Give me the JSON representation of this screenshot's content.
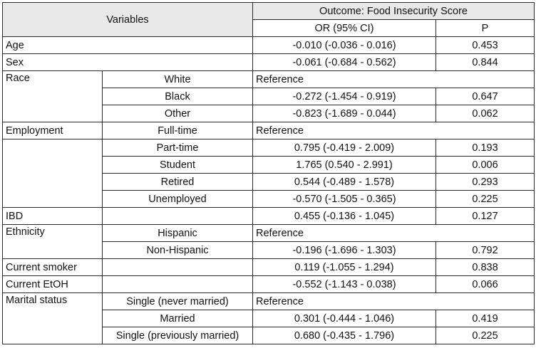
{
  "header": {
    "variables": "Variables",
    "outcome": "Outcome: Food Insecurity Score",
    "or_col": "OR (95% CI)",
    "p_col": "P"
  },
  "rows": {
    "age": {
      "label": "Age",
      "or": "-0.010 (-0.036 - 0.016)",
      "p": "0.453"
    },
    "sex": {
      "label": "Sex",
      "or": "-0.061 (-0.684 - 0.562)",
      "p": "0.844"
    },
    "race": {
      "label": "Race",
      "white": {
        "label": "White",
        "or": "Reference"
      },
      "black": {
        "label": "Black",
        "or": "-0.272 (-1.454 - 0.919)",
        "p": "0.647"
      },
      "other": {
        "label": "Other",
        "or": "-0.823 (-1.689 - 0.044)",
        "p": "0.062"
      }
    },
    "employment": {
      "label": "Employment",
      "fulltime": {
        "label": "Full-time",
        "or": "Reference"
      },
      "parttime": {
        "label": "Part-time",
        "or": "0.795 (-0.419 - 2.009)",
        "p": "0.193"
      },
      "student": {
        "label": "Student",
        "or": "1.765 (0.540 - 2.991)",
        "p": "0.006"
      },
      "retired": {
        "label": "Retired",
        "or": "0.544 (-0.489 - 1.578)",
        "p": "0.293"
      },
      "unemployed": {
        "label": "Unemployed",
        "or": "-0.570 (-1.505 - 0.365)",
        "p": "0.225"
      }
    },
    "ibd": {
      "label": "IBD",
      "or": "0.455 (-0.136 - 1.045)",
      "p": "0.127"
    },
    "ethnicity": {
      "label": "Ethnicity",
      "hispanic": {
        "label": "Hispanic",
        "or": "Reference"
      },
      "nonhispanic": {
        "label": "Non-Hispanic",
        "or": "-0.196 (-1.696 - 1.303)",
        "p": "0.792"
      }
    },
    "smoker": {
      "label": "Current smoker",
      "or": "0.119 (-1.055 - 1.294)",
      "p": "0.838"
    },
    "etoh": {
      "label": "Current EtOH",
      "or": "-0.552 (-1.143 - 0.038)",
      "p": "0.066"
    },
    "marital": {
      "label": "Marital status",
      "single_never": {
        "label": "Single (never married)",
        "or": "Reference"
      },
      "married": {
        "label": "Married",
        "or": "0.301 (-0.444 - 1.046)",
        "p": "0.419"
      },
      "single_prev": {
        "label": "Single (previously married)",
        "or": "0.680 (-0.435 - 1.796)",
        "p": "0.225"
      }
    }
  }
}
